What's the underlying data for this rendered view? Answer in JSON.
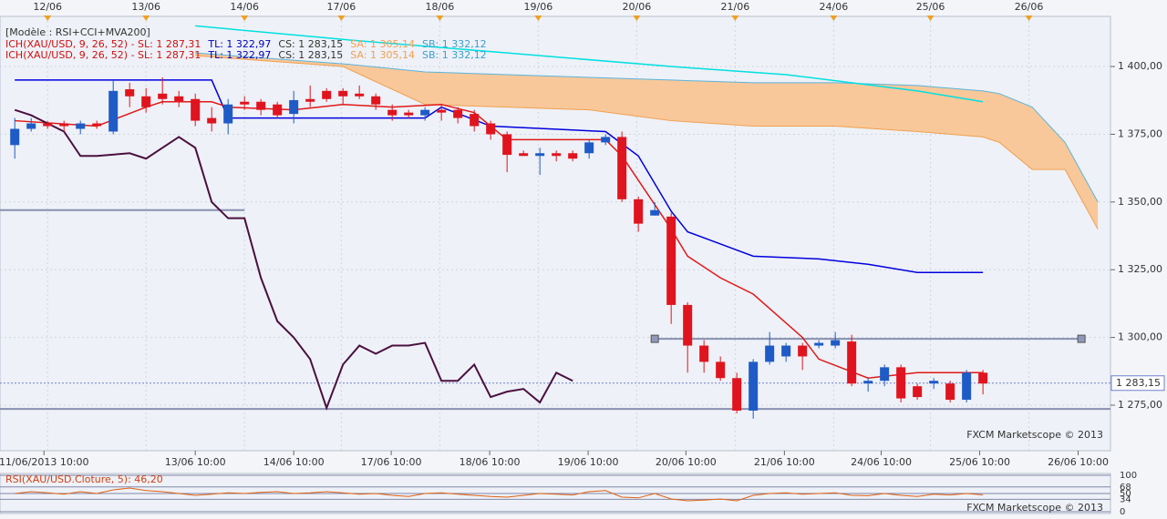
{
  "chart_data": [
    {
      "type": "candlestick",
      "header": "[Modèle : RSI+CCI+MVA200]",
      "indicator_legend": [
        {
          "text": "ICH(XAU/USD, 9, 26, 52) -  SL: 1 287,31",
          "color": "#d01010"
        },
        {
          "text": "TL: 1 322,97",
          "color": "#0000c0"
        },
        {
          "text": "CS: 1 283,15",
          "color": "#333333"
        },
        {
          "text": "SA: 1 305,14",
          "color": "#f0a050"
        },
        {
          "text": "SB: 1 332,12",
          "color": "#3aa0d0"
        }
      ],
      "watermark": "FXCM Marketscope © 2013",
      "xlim": [
        -0.9,
        66.77
      ],
      "ylim": [
        1258.2,
        1418.5
      ],
      "yticks": [
        {
          "value": 1275,
          "label": "1 275,00"
        },
        {
          "value": 1300,
          "label": "1 300,00"
        },
        {
          "value": 1325,
          "label": "1 325,00"
        },
        {
          "value": 1350,
          "label": "1 350,00"
        },
        {
          "value": 1375,
          "label": "1 375,00"
        },
        {
          "value": 1400,
          "label": "1 400,00"
        }
      ],
      "xticks": [
        {
          "value": 1.78,
          "label": "11/06/2013 10:00"
        },
        {
          "value": 11,
          "label": "13/06 10:00"
        },
        {
          "value": 17,
          "label": "14/06 10:00"
        },
        {
          "value": 22.94,
          "label": "17/06 10:00"
        },
        {
          "value": 28.94,
          "label": "18/06 10:00"
        },
        {
          "value": 34.94,
          "label": "19/06 10:00"
        },
        {
          "value": 40.9,
          "label": "20/06 10:00"
        },
        {
          "value": 46.9,
          "label": "21/06 10:00"
        },
        {
          "value": 52.8,
          "label": "24/06 10:00"
        },
        {
          "value": 58.8,
          "label": "25/06 10:00"
        },
        {
          "value": 64.8,
          "label": "26/06 10:00"
        }
      ],
      "x2ticks": [
        {
          "value": 2,
          "label": "12/06"
        },
        {
          "value": 8,
          "label": "13/06"
        },
        {
          "value": 14,
          "label": "14/06"
        },
        {
          "value": 19.9,
          "label": "17/06"
        },
        {
          "value": 25.9,
          "label": "18/06"
        },
        {
          "value": 31.9,
          "label": "19/06"
        },
        {
          "value": 37.9,
          "label": "20/06"
        },
        {
          "value": 43.9,
          "label": "21/06"
        },
        {
          "value": 49.9,
          "label": "24/06"
        },
        {
          "value": 55.8,
          "label": "25/06"
        },
        {
          "value": 61.8,
          "label": "26/06"
        }
      ],
      "up_color": "#1e5bc6",
      "down_color": "#e0141e",
      "x": [
        0,
        1,
        2,
        3,
        4,
        5,
        6,
        7,
        8,
        9,
        10,
        11,
        12,
        13,
        14,
        15,
        16,
        17,
        18,
        19,
        20,
        21,
        22,
        23,
        24,
        25,
        26,
        27,
        28,
        29,
        30,
        31,
        32,
        33,
        34,
        35,
        36,
        37,
        38,
        39,
        40,
        41,
        42,
        43,
        44,
        45,
        46,
        47,
        48,
        49,
        50,
        51,
        52,
        53,
        54,
        55,
        56,
        57,
        58,
        59
      ],
      "open": [
        1371,
        1377,
        1379,
        1379,
        1377,
        1379,
        1376,
        1391.6,
        1389,
        1390,
        1389,
        1388,
        1381,
        1379,
        1387,
        1387,
        1386,
        1382.5,
        1388,
        1391,
        1391,
        1390,
        1389,
        1384,
        1383,
        1382,
        1384,
        1384,
        1382.5,
        1379,
        1375,
        1368,
        1367,
        1368,
        1368,
        1368,
        1372,
        1374,
        1351,
        1345,
        1344.6,
        1312,
        1297,
        1291,
        1285,
        1273,
        1291,
        1293,
        1297,
        1297,
        1297,
        1298.5,
        1283,
        1284,
        1289,
        1282,
        1283,
        1283,
        1277,
        1287
      ],
      "high": [
        1381,
        1381,
        1380,
        1380,
        1380,
        1380,
        1395,
        1394,
        1392,
        1396,
        1391,
        1390,
        1385,
        1388,
        1389,
        1388,
        1387,
        1391,
        1393,
        1392,
        1392,
        1393,
        1390,
        1386,
        1384,
        1385,
        1386,
        1385,
        1384,
        1380,
        1376,
        1369,
        1370,
        1369,
        1369,
        1373,
        1375,
        1376,
        1352,
        1350,
        1346,
        1313,
        1299,
        1293,
        1287,
        1292,
        1302,
        1298,
        1298,
        1299,
        1302,
        1301,
        1285,
        1290,
        1290,
        1283,
        1285,
        1284,
        1288,
        1288
      ],
      "low": [
        1366,
        1376,
        1377,
        1376,
        1375,
        1377,
        1375,
        1385,
        1383,
        1386,
        1385,
        1378,
        1376,
        1375,
        1384,
        1382,
        1381,
        1379,
        1385,
        1387,
        1386,
        1388,
        1384,
        1380,
        1381,
        1380,
        1380,
        1379,
        1376,
        1373,
        1361,
        1367,
        1360,
        1365,
        1365,
        1366,
        1371,
        1350,
        1339,
        1345,
        1305,
        1287,
        1287,
        1284,
        1272,
        1270,
        1290,
        1291,
        1288,
        1296,
        1296,
        1282,
        1280,
        1282,
        1276,
        1277,
        1281,
        1276,
        1276,
        1279
      ],
      "close": [
        1377,
        1379,
        1378,
        1378,
        1379,
        1378,
        1391,
        1389,
        1385,
        1388,
        1387,
        1380,
        1379,
        1386,
        1386,
        1384,
        1382,
        1387.6,
        1387,
        1388,
        1389,
        1389,
        1386,
        1382,
        1382,
        1384,
        1383,
        1381,
        1378,
        1375,
        1367.4,
        1367,
        1368,
        1367,
        1366,
        1372,
        1374,
        1351,
        1342,
        1347,
        1312,
        1297,
        1291,
        1285,
        1273,
        1291,
        1297,
        1297,
        1293,
        1298,
        1299,
        1283,
        1284,
        1289,
        1277.5,
        1278,
        1284,
        1277,
        1287,
        1283
      ],
      "cloud": {
        "fill": "#f8c89a",
        "upper": {
          "color": "#5ab4dc",
          "x": [
            11,
            20,
            25,
            30,
            35,
            40,
            45,
            50,
            55,
            59,
            60,
            62,
            64,
            66
          ],
          "values": [
            1405,
            1401,
            1398,
            1397,
            1396,
            1395,
            1394,
            1394,
            1393,
            1391,
            1390,
            1385,
            1372,
            1350
          ]
        },
        "lower": {
          "color": "#f0a050",
          "x": [
            11,
            20,
            25,
            30,
            35,
            40,
            45,
            50,
            55,
            59,
            60,
            62,
            64,
            66
          ],
          "values": [
            1404,
            1400,
            1386,
            1385,
            1384,
            1380,
            1378,
            1378,
            1376,
            1374,
            1372,
            1362,
            1362,
            1340
          ]
        }
      },
      "lines": [
        {
          "color": "#00e0e0",
          "x": [
            11,
            20,
            30,
            40,
            47,
            55,
            59
          ],
          "values": [
            1415,
            1410,
            1405,
            1400,
            1397,
            1391,
            1387
          ]
        },
        {
          "color": "#0000dd",
          "x": [
            0,
            12,
            13,
            25,
            26,
            29,
            36,
            38,
            40,
            41,
            43,
            45,
            49,
            52,
            55,
            59
          ],
          "values": [
            1395,
            1395,
            1381,
            1381,
            1385,
            1378,
            1376,
            1367,
            1346.6,
            1339,
            1334.5,
            1330,
            1329,
            1327,
            1324,
            1324
          ]
        },
        {
          "color": "#e01818",
          "x": [
            0,
            5,
            8,
            9,
            12,
            13,
            17,
            20,
            23,
            26,
            28,
            30,
            36,
            37,
            40,
            41,
            43,
            45,
            48,
            49,
            52,
            55,
            59
          ],
          "values": [
            1380,
            1378,
            1385,
            1387,
            1387,
            1385,
            1384,
            1386,
            1385,
            1386,
            1383,
            1373,
            1373,
            1367,
            1340,
            1330,
            1322,
            1316,
            1300,
            1292,
            1285,
            1287,
            1287
          ]
        },
        {
          "color": "#4a1040",
          "x": [
            0,
            1,
            2,
            3,
            4,
            5,
            7,
            8,
            9,
            10,
            11,
            12,
            13,
            14,
            15,
            16,
            17,
            18,
            19,
            20,
            21,
            22,
            23,
            24,
            25,
            26,
            27,
            28,
            29,
            30,
            31,
            32,
            33,
            34
          ],
          "values": [
            1384,
            1382,
            1379,
            1376,
            1367,
            1367,
            1368,
            1366,
            1370,
            1374,
            1370,
            1350,
            1344,
            1344,
            1322,
            1306,
            1300,
            1292,
            1274,
            1290,
            1297,
            1294,
            1297,
            1297,
            1298,
            1284,
            1284,
            1290,
            1278,
            1280,
            1281,
            1276,
            1287,
            1284
          ]
        }
      ],
      "hlines": [
        {
          "value": 1347,
          "x": [
            -0.9,
            14
          ]
        },
        {
          "value": 1299.5,
          "x": [
            39,
            65
          ]
        },
        {
          "value": 1273.6,
          "x": [
            -0.9,
            66.77
          ]
        }
      ],
      "last_price": {
        "value": 1283.15,
        "label": "1 283,15"
      }
    },
    {
      "type": "line",
      "title": "RSI(XAU/USD.Cloture, 5): 46,20",
      "watermark": "FXCM Marketscope © 2013",
      "color": "#e06010",
      "xlim": [
        -0.9,
        66.77
      ],
      "ylim": [
        0,
        100
      ],
      "yticks": [
        0,
        34,
        50,
        68,
        100
      ],
      "x": [
        0,
        1,
        2,
        3,
        4,
        5,
        6,
        7,
        8,
        9,
        10,
        11,
        12,
        13,
        14,
        15,
        16,
        17,
        18,
        19,
        20,
        21,
        22,
        23,
        24,
        25,
        26,
        27,
        28,
        29,
        30,
        31,
        32,
        33,
        34,
        35,
        36,
        37,
        38,
        39,
        40,
        41,
        42,
        43,
        44,
        45,
        46,
        47,
        48,
        49,
        50,
        51,
        52,
        53,
        54,
        55,
        56,
        57,
        58,
        59
      ],
      "values": [
        50,
        55,
        52,
        48,
        55,
        50,
        60,
        65,
        58,
        55,
        50,
        45,
        48,
        52,
        50,
        53,
        55,
        50,
        52,
        55,
        52,
        48,
        50,
        45,
        42,
        50,
        52,
        48,
        45,
        42,
        40,
        45,
        50,
        48,
        46,
        55,
        58,
        40,
        38,
        50,
        35,
        30,
        32,
        35,
        30,
        45,
        50,
        52,
        48,
        50,
        52,
        45,
        44,
        50,
        45,
        42,
        48,
        46,
        50,
        46.2
      ]
    }
  ]
}
